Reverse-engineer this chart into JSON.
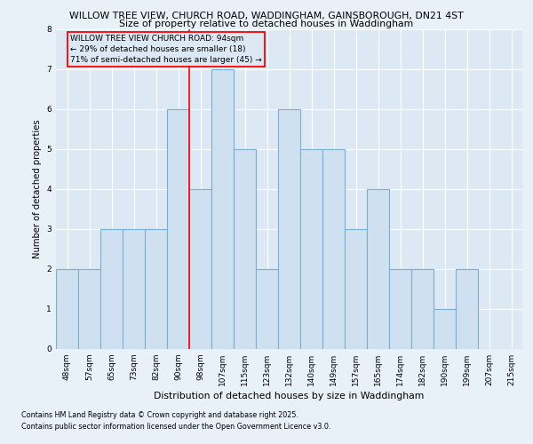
{
  "title_line1": "WILLOW TREE VIEW, CHURCH ROAD, WADDINGHAM, GAINSBOROUGH, DN21 4ST",
  "title_line2": "Size of property relative to detached houses in Waddingham",
  "xlabel": "Distribution of detached houses by size in Waddingham",
  "ylabel": "Number of detached properties",
  "categories": [
    "48sqm",
    "57sqm",
    "65sqm",
    "73sqm",
    "82sqm",
    "90sqm",
    "98sqm",
    "107sqm",
    "115sqm",
    "123sqm",
    "132sqm",
    "140sqm",
    "149sqm",
    "157sqm",
    "165sqm",
    "174sqm",
    "182sqm",
    "190sqm",
    "199sqm",
    "207sqm",
    "215sqm"
  ],
  "values": [
    2,
    2,
    3,
    3,
    3,
    6,
    4,
    7,
    5,
    2,
    6,
    5,
    5,
    3,
    4,
    2,
    2,
    1,
    2,
    0,
    0
  ],
  "bar_color": "#cfe0f0",
  "bar_edge_color": "#7aafd4",
  "red_line_x": 5.5,
  "annotation_text": "WILLOW TREE VIEW CHURCH ROAD: 94sqm\n← 29% of detached houses are smaller (18)\n71% of semi-detached houses are larger (45) →",
  "ylim": [
    0,
    8
  ],
  "yticks": [
    0,
    1,
    2,
    3,
    4,
    5,
    6,
    7,
    8
  ],
  "footer_line1": "Contains HM Land Registry data © Crown copyright and database right 2025.",
  "footer_line2": "Contains public sector information licensed under the Open Government Licence v3.0.",
  "bg_color": "#e8f0f8",
  "plot_bg_color": "#dce8f4",
  "grid_color": "#ffffff"
}
